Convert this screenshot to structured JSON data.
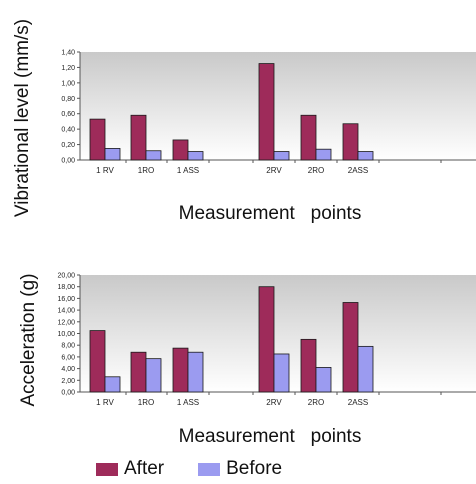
{
  "colors": {
    "after": "#9e2b5a",
    "before": "#9b9bf0",
    "plot_top": "#c9c9c9",
    "plot_bottom": "#ffffff"
  },
  "legend": {
    "after": "After",
    "before": "Before"
  },
  "chart_data": [
    {
      "type": "bar",
      "title": "",
      "xlabel": "Measurement   points",
      "ylabel": "Vibrational level (mm/s)",
      "ylim": [
        0,
        1.4
      ],
      "yticks": [
        "0,00",
        "0,20",
        "0,40",
        "0,60",
        "0,80",
        "1,00",
        "1,20",
        "1,40"
      ],
      "categories": [
        "1 RV",
        "1RO",
        "1 ASS",
        "",
        "2RV",
        "2RO",
        "2ASS",
        ""
      ],
      "series": [
        {
          "name": "After",
          "values": [
            0.53,
            0.58,
            0.26,
            null,
            1.25,
            0.58,
            0.47,
            null
          ]
        },
        {
          "name": "Before",
          "values": [
            0.15,
            0.12,
            0.11,
            null,
            0.11,
            0.14,
            0.11,
            null
          ]
        }
      ],
      "grid": false,
      "legend": "bottom"
    },
    {
      "type": "bar",
      "title": "",
      "xlabel": "Measurement   points",
      "ylabel": "Acceleration (g)",
      "ylim": [
        0,
        20
      ],
      "yticks": [
        "0,00",
        "2,00",
        "4,00",
        "6,00",
        "8,00",
        "10,00",
        "12,00",
        "14,00",
        "16,00",
        "18,00",
        "20,00"
      ],
      "categories": [
        "1 RV",
        "1RO",
        "1 ASS",
        "",
        "2RV",
        "2RO",
        "2ASS",
        ""
      ],
      "series": [
        {
          "name": "After",
          "values": [
            10.5,
            6.8,
            7.5,
            null,
            18.0,
            9.0,
            15.3,
            null
          ]
        },
        {
          "name": "Before",
          "values": [
            2.6,
            5.7,
            6.8,
            null,
            6.5,
            4.2,
            7.8,
            null
          ]
        }
      ],
      "grid": false,
      "legend": "bottom"
    }
  ]
}
